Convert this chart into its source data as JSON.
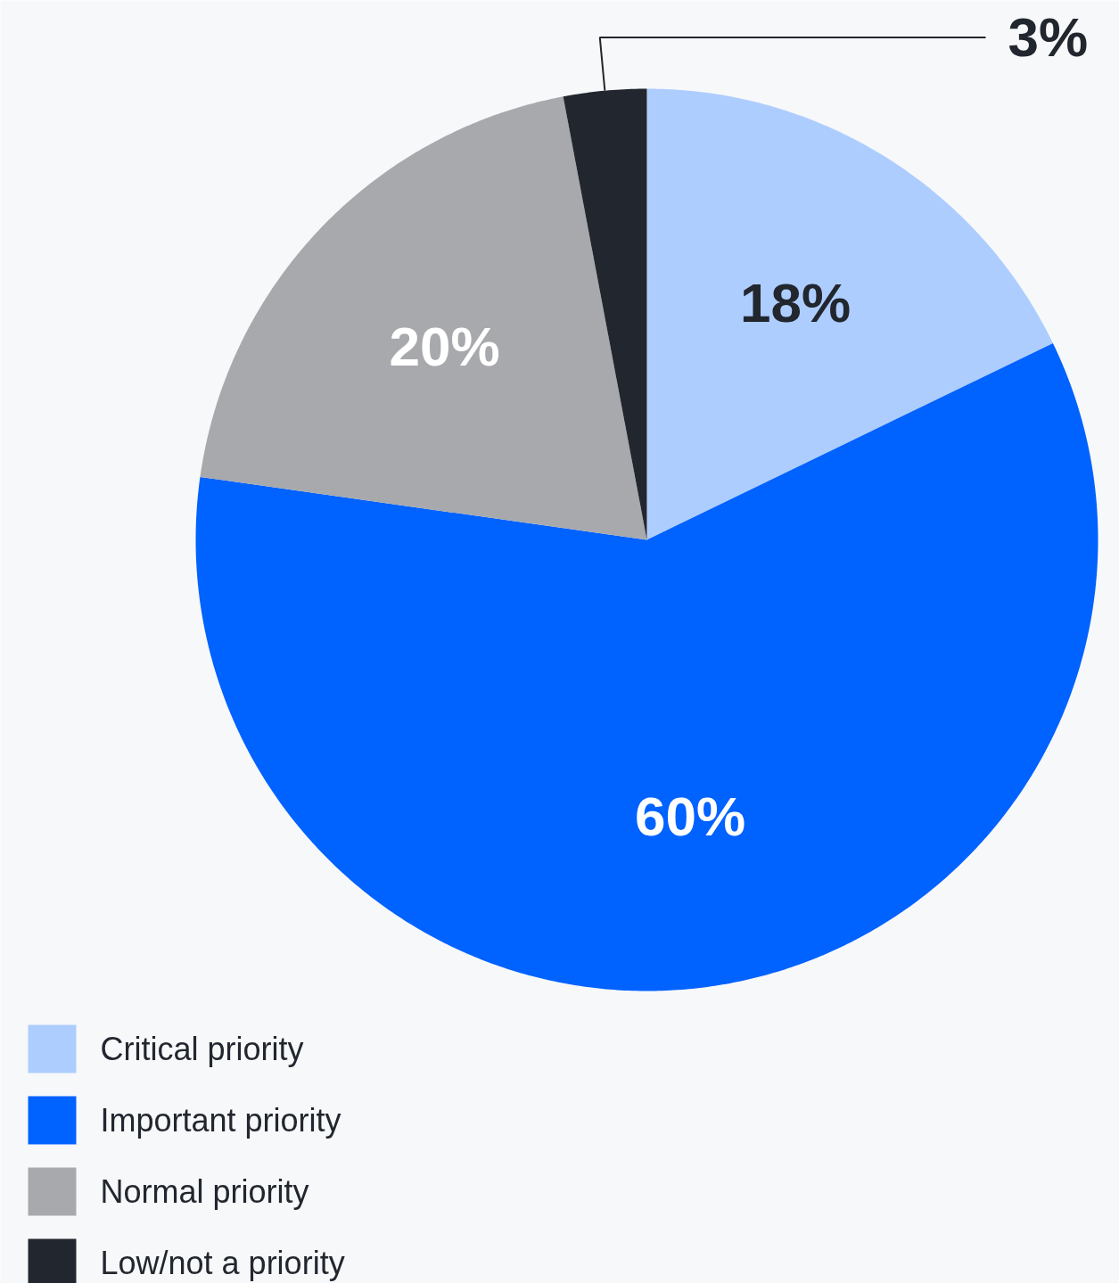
{
  "chart_data": {
    "type": "pie",
    "categories": [
      "Critical priority",
      "Important priority",
      "Normal priority",
      "Low/not a priority"
    ],
    "values": [
      18,
      60,
      20,
      3
    ],
    "colors": [
      "#adcdff",
      "#0062ff",
      "#a8a9ad",
      "#22262e"
    ],
    "value_labels": [
      "18%",
      "60%",
      "20%",
      "3%"
    ],
    "legend": "bottom left"
  }
}
